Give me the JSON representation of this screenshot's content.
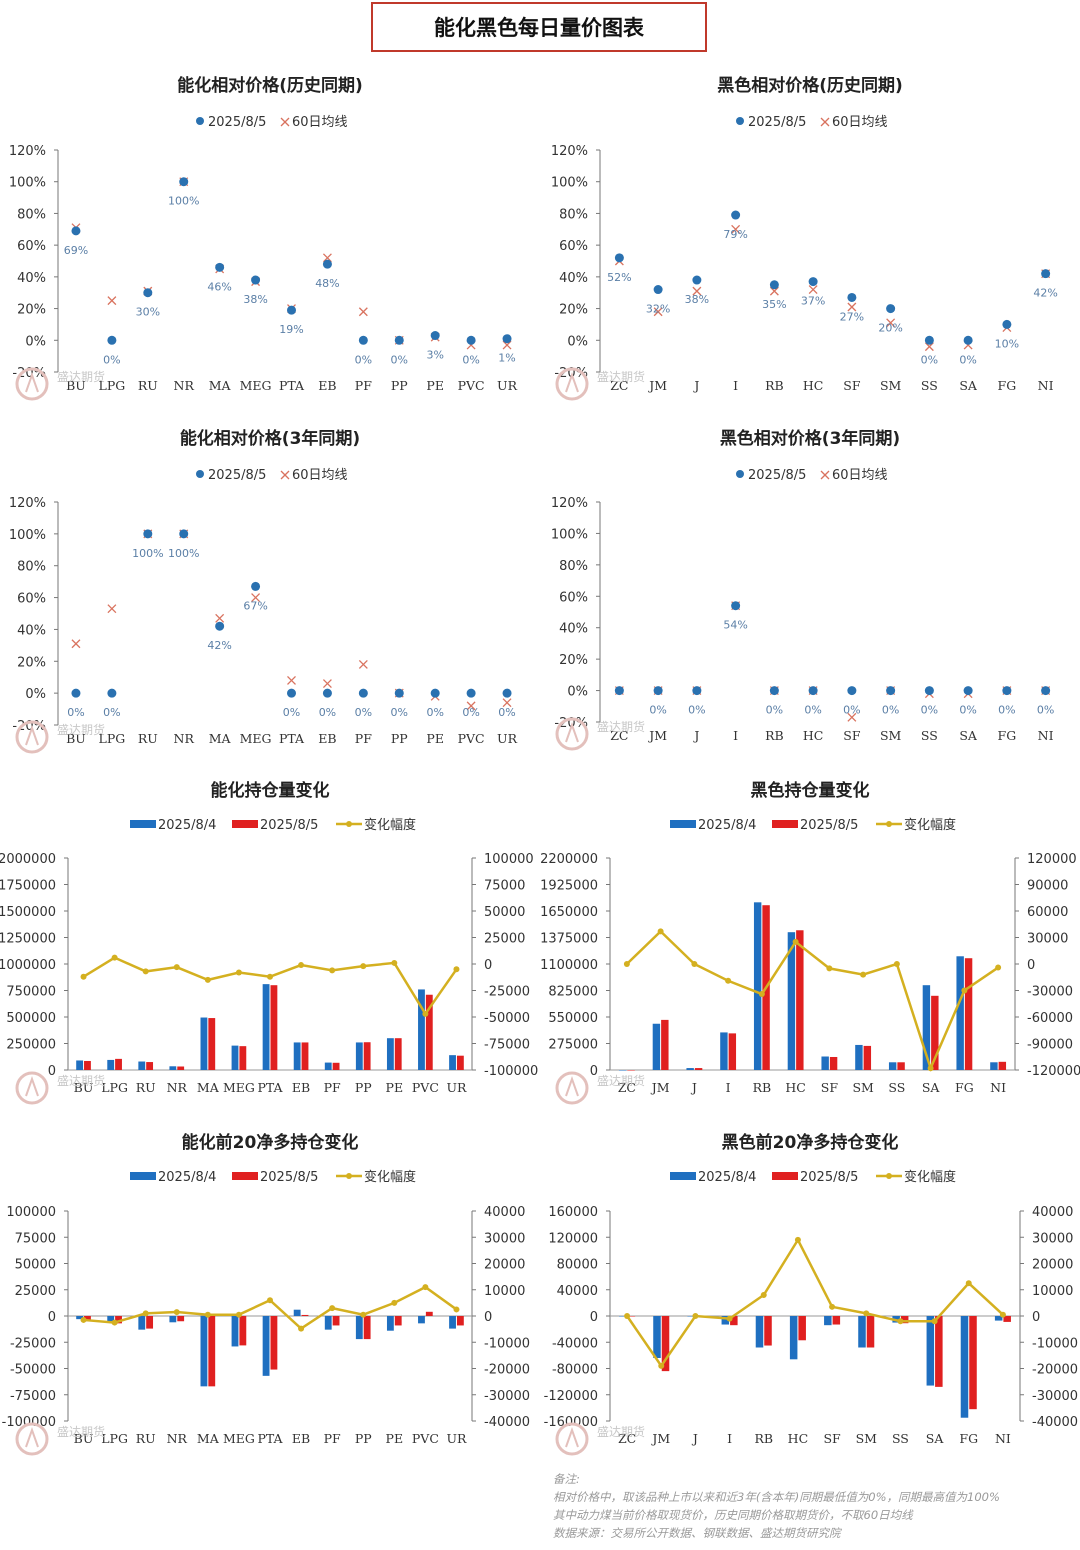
{
  "header": {
    "title": "能化黑色每日量价图表"
  },
  "watermark": "盛达期货",
  "colors": {
    "dot": "#2a71b0",
    "cross": "#d9735f",
    "bar1": "#1f6fc0",
    "bar2": "#e02020",
    "line": "#d4b020",
    "label": "#5b7fa6"
  },
  "chart_data": [
    {
      "id": "c1",
      "type": "scatter",
      "title": "能化相对价格(历史同期)",
      "legend": [
        "2025/8/5",
        "60日均线"
      ],
      "categories": [
        "BU",
        "LPG",
        "RU",
        "NR",
        "MA",
        "MEG",
        "PTA",
        "EB",
        "PF",
        "PP",
        "PE",
        "PVC",
        "UR"
      ],
      "ylim": [
        -20,
        120
      ],
      "ystep": 20,
      "yformat": "pct",
      "series": [
        {
          "name": "2025/8/5",
          "values": [
            69,
            0,
            30,
            100,
            46,
            38,
            19,
            48,
            0,
            0,
            3,
            0,
            1
          ]
        },
        {
          "name": "60日均线",
          "values": [
            71,
            25,
            31,
            100,
            45,
            37,
            20,
            52,
            18,
            0,
            2,
            -3,
            -3
          ]
        }
      ],
      "labels": [
        "69%",
        "0%",
        "30%",
        "100%",
        "46%",
        "38%",
        "19%",
        "48%",
        "0%",
        "0%",
        "3%",
        "0%",
        "1%"
      ]
    },
    {
      "id": "c2",
      "type": "scatter",
      "title": "黑色相对价格(历史同期)",
      "legend": [
        "2025/8/5",
        "60日均线"
      ],
      "categories": [
        "ZC",
        "JM",
        "J",
        "I",
        "RB",
        "HC",
        "SF",
        "SM",
        "SS",
        "SA",
        "FG",
        "NI"
      ],
      "ylim": [
        -20,
        120
      ],
      "ystep": 20,
      "yformat": "pct",
      "series": [
        {
          "name": "2025/8/5",
          "values": [
            52,
            32,
            38,
            79,
            35,
            37,
            27,
            20,
            0,
            0,
            10,
            42
          ]
        },
        {
          "name": "60日均线",
          "values": [
            50,
            18,
            31,
            70,
            31,
            32,
            21,
            11,
            -4,
            -3,
            8,
            42
          ]
        }
      ],
      "labels": [
        "52%",
        "32%",
        "38%",
        "79%",
        "35%",
        "37%",
        "27%",
        "20%",
        "0%",
        "0%",
        "10%",
        "42%"
      ]
    },
    {
      "id": "c3",
      "type": "scatter",
      "title": "能化相对价格(3年同期)",
      "legend": [
        "2025/8/5",
        "60日均线"
      ],
      "categories": [
        "BU",
        "LPG",
        "RU",
        "NR",
        "MA",
        "MEG",
        "PTA",
        "EB",
        "PF",
        "PP",
        "PE",
        "PVC",
        "UR"
      ],
      "ylim": [
        -20,
        120
      ],
      "ystep": 20,
      "yformat": "pct",
      "series": [
        {
          "name": "2025/8/5",
          "values": [
            0,
            0,
            100,
            100,
            42,
            67,
            0,
            0,
            0,
            0,
            0,
            0,
            0
          ]
        },
        {
          "name": "60日均线",
          "values": [
            31,
            53,
            100,
            100,
            47,
            60,
            8,
            6,
            18,
            0,
            -2,
            -8,
            -6
          ]
        }
      ],
      "labels": [
        "0%",
        "0%",
        "100%",
        "100%",
        "42%",
        "67%",
        "0%",
        "0%",
        "0%",
        "0%",
        "0%",
        "0%",
        "0%"
      ]
    },
    {
      "id": "c4",
      "type": "scatter",
      "title": "黑色相对价格(3年同期)",
      "legend": [
        "2025/8/5",
        "60日均线"
      ],
      "categories": [
        "ZC",
        "JM",
        "J",
        "I",
        "RB",
        "HC",
        "SF",
        "SM",
        "SS",
        "SA",
        "FG",
        "NI"
      ],
      "ylim": [
        -20,
        120
      ],
      "ystep": 20,
      "yformat": "pct",
      "series": [
        {
          "name": "2025/8/5",
          "values": [
            0,
            0,
            0,
            54,
            0,
            0,
            0,
            0,
            0,
            0,
            0,
            0
          ]
        },
        {
          "name": "60日均线",
          "values": [
            0,
            0,
            0,
            54,
            0,
            0,
            -17,
            0,
            -2,
            -2,
            0,
            0
          ]
        }
      ],
      "labels": [
        "",
        "0%",
        "0%",
        "54%",
        "0%",
        "0%",
        "0%",
        "0%",
        "0%",
        "0%",
        "0%",
        "0%"
      ]
    },
    {
      "id": "c5",
      "type": "bar",
      "title": "能化持仓量变化",
      "legend": [
        "2025/8/4",
        "2025/8/5",
        "变化幅度"
      ],
      "categories": [
        "BU",
        "LPG",
        "RU",
        "NR",
        "MA",
        "MEG",
        "PTA",
        "EB",
        "PF",
        "PP",
        "PE",
        "PVC",
        "UR"
      ],
      "ylim": [
        0,
        2000000
      ],
      "ystep": 250000,
      "y2lim": [
        -100000,
        100000
      ],
      "y2step": 25000,
      "series": [
        {
          "name": "2025/8/4",
          "values": [
            90000,
            95000,
            80000,
            35000,
            495000,
            230000,
            810000,
            260000,
            70000,
            260000,
            300000,
            760000,
            140000
          ]
        },
        {
          "name": "2025/8/5",
          "values": [
            85000,
            105000,
            75000,
            33000,
            490000,
            225000,
            800000,
            260000,
            68000,
            262000,
            300000,
            710000,
            135000
          ]
        },
        {
          "name": "变化幅度",
          "axis": "right",
          "values": [
            -12000,
            6000,
            -7000,
            -3000,
            -15000,
            -8000,
            -12000,
            -1000,
            -6000,
            -2000,
            1000,
            -47000,
            -5000
          ]
        }
      ]
    },
    {
      "id": "c6",
      "type": "bar",
      "title": "黑色持仓量变化",
      "legend": [
        "2025/8/4",
        "2025/8/5",
        "变化幅度"
      ],
      "categories": [
        "ZC",
        "JM",
        "J",
        "I",
        "RB",
        "HC",
        "SF",
        "SM",
        "SS",
        "SA",
        "FG",
        "NI"
      ],
      "ylim": [
        0,
        2200000
      ],
      "ystep": 275000,
      "y2lim": [
        -120000,
        120000
      ],
      "y2step": 30000,
      "series": [
        {
          "name": "2025/8/4",
          "values": [
            0,
            480000,
            20000,
            390000,
            1740000,
            1430000,
            140000,
            260000,
            80000,
            880000,
            1180000,
            80000
          ]
        },
        {
          "name": "2025/8/5",
          "values": [
            0,
            520000,
            20000,
            380000,
            1710000,
            1450000,
            135000,
            250000,
            80000,
            770000,
            1160000,
            85000
          ]
        },
        {
          "name": "变化幅度",
          "axis": "right",
          "values": [
            0,
            37000,
            0,
            -19000,
            -34000,
            25000,
            -5000,
            -12000,
            0,
            -118000,
            -30000,
            -4000
          ]
        }
      ]
    },
    {
      "id": "c7",
      "type": "bar",
      "title": "能化前20净多持仓变化",
      "legend": [
        "2025/8/4",
        "2025/8/5",
        "变化幅度"
      ],
      "categories": [
        "BU",
        "LPG",
        "RU",
        "NR",
        "MA",
        "MEG",
        "PTA",
        "EB",
        "PF",
        "PP",
        "PE",
        "PVC",
        "UR"
      ],
      "ylim": [
        -100000,
        100000
      ],
      "ystep": 25000,
      "y2lim": [
        -40000,
        40000
      ],
      "y2step": 10000,
      "series": [
        {
          "name": "2025/8/4",
          "values": [
            -3000,
            -5000,
            -13000,
            -6000,
            -67000,
            -29000,
            -57000,
            6000,
            -13000,
            -22000,
            -14000,
            -7000,
            -12000
          ]
        },
        {
          "name": "2025/8/5",
          "values": [
            -5000,
            -7000,
            -12000,
            -5000,
            -67000,
            -28000,
            -51000,
            1000,
            -9000,
            -22000,
            -9000,
            4000,
            -9000
          ]
        },
        {
          "name": "变化幅度",
          "axis": "right",
          "values": [
            -1500,
            -2500,
            1000,
            1500,
            500,
            500,
            6000,
            -4800,
            3000,
            500,
            5000,
            11000,
            2500
          ]
        }
      ]
    },
    {
      "id": "c8",
      "type": "bar",
      "title": "黑色前20净多持仓变化",
      "legend": [
        "2025/8/4",
        "2025/8/5",
        "变化幅度"
      ],
      "categories": [
        "ZC",
        "JM",
        "J",
        "I",
        "RB",
        "HC",
        "SF",
        "SM",
        "SS",
        "SA",
        "FG",
        "NI"
      ],
      "ylim": [
        -160000,
        160000
      ],
      "ystep": 40000,
      "y2lim": [
        -40000,
        40000
      ],
      "y2step": 10000,
      "series": [
        {
          "name": "2025/8/4",
          "values": [
            0,
            -64000,
            0,
            -13000,
            -48000,
            -66000,
            -14000,
            -48000,
            -10000,
            -106000,
            -155000,
            -7000
          ]
        },
        {
          "name": "2025/8/5",
          "values": [
            0,
            -84000,
            0,
            -14000,
            -45000,
            -37000,
            -13000,
            -48000,
            -11000,
            -108000,
            -142000,
            -9000
          ]
        },
        {
          "name": "变化幅度",
          "axis": "right",
          "values": [
            0,
            -19000,
            0,
            -1000,
            8000,
            29000,
            3500,
            1000,
            -2000,
            -2000,
            12500,
            500
          ]
        }
      ]
    }
  ],
  "notes": {
    "title": "备注:",
    "line1": "相对价格中，取该品种上市以来和近3年(含本年)同期最低值为0%，同期最高值为100%",
    "line2": "其中动力煤当前价格取现货价，历史同期价格取期货价，不取60日均线",
    "line3": "数据来源：交易所公开数据、钢联数据、盛达期货研究院"
  }
}
